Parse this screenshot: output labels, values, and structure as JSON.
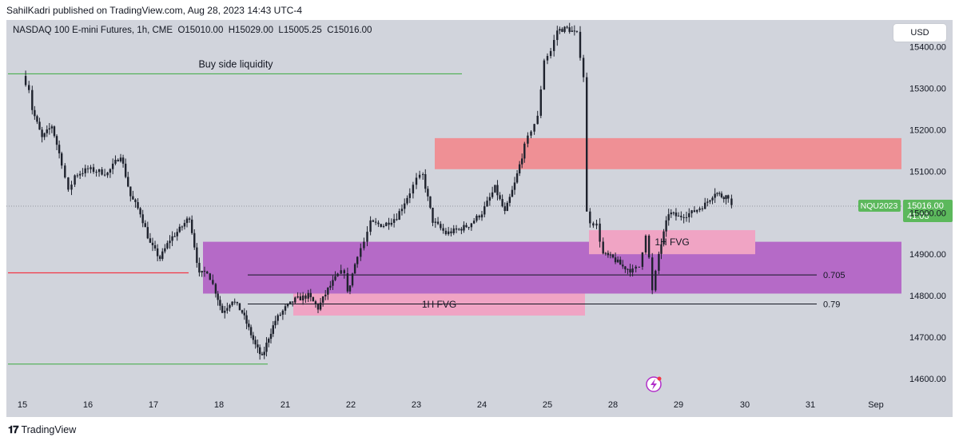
{
  "header": {
    "publisher": "SahilKadri published on TradingView.com, Aug 28, 2023 14:43 UTC-4"
  },
  "legend": {
    "symbol": "NASDAQ 100 E-mini Futures, 1h, CME",
    "open": "O15010.00",
    "high": "H15029.00",
    "low": "L15005.25",
    "close": "C15016.00"
  },
  "currency_button": "USD",
  "footer": {
    "brand": "TradingView"
  },
  "colors": {
    "background": "#d1d4dc",
    "candle": "#1e222d",
    "green_line": "#4caf50",
    "red_line": "#f23645",
    "supply_zone": "#ef9095",
    "fvg": "#f0a4c4",
    "purple_zone": "#b56ac7",
    "price_tag": "#5cb85c"
  },
  "chart_data": {
    "type": "candlestick",
    "title": "NASDAQ 100 E-mini Futures, 1h, CME",
    "x_ticks": [
      "15",
      "16",
      "17",
      "18",
      "21",
      "22",
      "23",
      "24",
      "25",
      "28",
      "29",
      "30",
      "31",
      "Sep"
    ],
    "y_ticks": [
      14600,
      14700,
      14800,
      14900,
      15000,
      15100,
      15200,
      15300,
      15400
    ],
    "y_tick_labels": [
      "14600.00",
      "14700.00",
      "14800.00",
      "14900.00",
      "15000.00",
      "15100.00",
      "15200.00",
      "15300.00",
      "15400.00"
    ],
    "ylim": [
      14565,
      15465
    ],
    "last_price": {
      "value": 15016.0,
      "label": "15016.00",
      "symbol": "NQU2023",
      "countdown": "41:03"
    },
    "path": [
      [
        15,
        15330
      ],
      [
        15.1,
        15300
      ],
      [
        15.15,
        15250
      ],
      [
        15.3,
        15180
      ],
      [
        15.45,
        15210
      ],
      [
        15.6,
        15120
      ],
      [
        15.7,
        15050
      ],
      [
        15.8,
        15090
      ],
      [
        16,
        15105
      ],
      [
        16.3,
        15095
      ],
      [
        16.5,
        15140
      ],
      [
        16.65,
        15040
      ],
      [
        16.8,
        15000
      ],
      [
        16.95,
        14925
      ],
      [
        17.1,
        14890
      ],
      [
        17.25,
        14935
      ],
      [
        17.4,
        14960
      ],
      [
        17.55,
        14990
      ],
      [
        17.7,
        14850
      ],
      [
        17.82,
        14860
      ],
      [
        17.95,
        14810
      ],
      [
        18.05,
        14760
      ],
      [
        18.2,
        14790
      ],
      [
        18.35,
        14760
      ],
      [
        18.45,
        14720
      ],
      [
        18.55,
        14680
      ],
      [
        18.65,
        14650
      ],
      [
        18.75,
        14700
      ],
      [
        18.85,
        14740
      ],
      [
        19.0,
        14770
      ],
      [
        19.15,
        14790
      ],
      [
        19.35,
        14800
      ],
      [
        19.5,
        14770
      ],
      [
        19.65,
        14815
      ],
      [
        19.8,
        14850
      ],
      [
        19.9,
        14860
      ],
      [
        19.95,
        14805
      ],
      [
        20.1,
        14900
      ],
      [
        20.2,
        14930
      ],
      [
        20.3,
        14975
      ],
      [
        20.5,
        14970
      ],
      [
        20.7,
        14990
      ],
      [
        20.9,
        15050
      ],
      [
        21.0,
        15080
      ],
      [
        21.1,
        15090
      ],
      [
        21.25,
        14980
      ],
      [
        21.45,
        14950
      ],
      [
        21.65,
        14960
      ],
      [
        21.8,
        14970
      ],
      [
        22.0,
        15000
      ],
      [
        22.2,
        15060
      ],
      [
        22.35,
        15000
      ],
      [
        22.5,
        15070
      ],
      [
        22.65,
        15160
      ],
      [
        22.75,
        15200
      ],
      [
        22.85,
        15230
      ],
      [
        22.95,
        15370
      ],
      [
        23.05,
        15390
      ],
      [
        23.15,
        15440
      ],
      [
        23.3,
        15445
      ],
      [
        23.45,
        15430
      ],
      [
        23.55,
        15330
      ],
      [
        23.6,
        15000
      ],
      [
        23.65,
        14980
      ],
      [
        23.75,
        14970
      ],
      [
        23.85,
        14900
      ],
      [
        24.0,
        14890
      ],
      [
        24.15,
        14870
      ],
      [
        24.3,
        14860
      ],
      [
        24.4,
        14870
      ],
      [
        24.5,
        14950
      ],
      [
        24.55,
        14890
      ],
      [
        24.6,
        14810
      ],
      [
        24.7,
        14900
      ],
      [
        24.85,
        15000
      ],
      [
        25.0,
        14990
      ],
      [
        25.2,
        15000
      ],
      [
        25.4,
        15020
      ],
      [
        25.55,
        15050
      ],
      [
        25.65,
        15040
      ],
      [
        25.75,
        15040
      ],
      [
        25.8,
        15016
      ]
    ],
    "lines": [
      {
        "name": "buy-side-liquidity",
        "label": "Buy side liquidity",
        "price": 15335,
        "color": "green"
      },
      {
        "name": "sell-side-liquidity",
        "label": "",
        "price": 14635,
        "color": "green"
      },
      {
        "name": "red-level",
        "label": "",
        "price": 14855,
        "color": "red"
      },
      {
        "name": "fib-0705",
        "label": "0.705",
        "price": 14850,
        "color": "black"
      },
      {
        "name": "fib-079",
        "label": "0.79",
        "price": 14780,
        "color": "black"
      }
    ],
    "zones": [
      {
        "name": "supply-zone",
        "label": "",
        "top": 15180,
        "bottom": 15105,
        "color": "red"
      },
      {
        "name": "purple-zone",
        "label": "",
        "top": 14930,
        "bottom": 14805,
        "color": "purple"
      },
      {
        "name": "fvg-upper",
        "label": "1H FVG",
        "top": 14958,
        "bottom": 14900,
        "color": "pink"
      },
      {
        "name": "fvg-lower",
        "label": "1H FVG",
        "top": 14805,
        "bottom": 14752,
        "color": "pink"
      }
    ]
  }
}
